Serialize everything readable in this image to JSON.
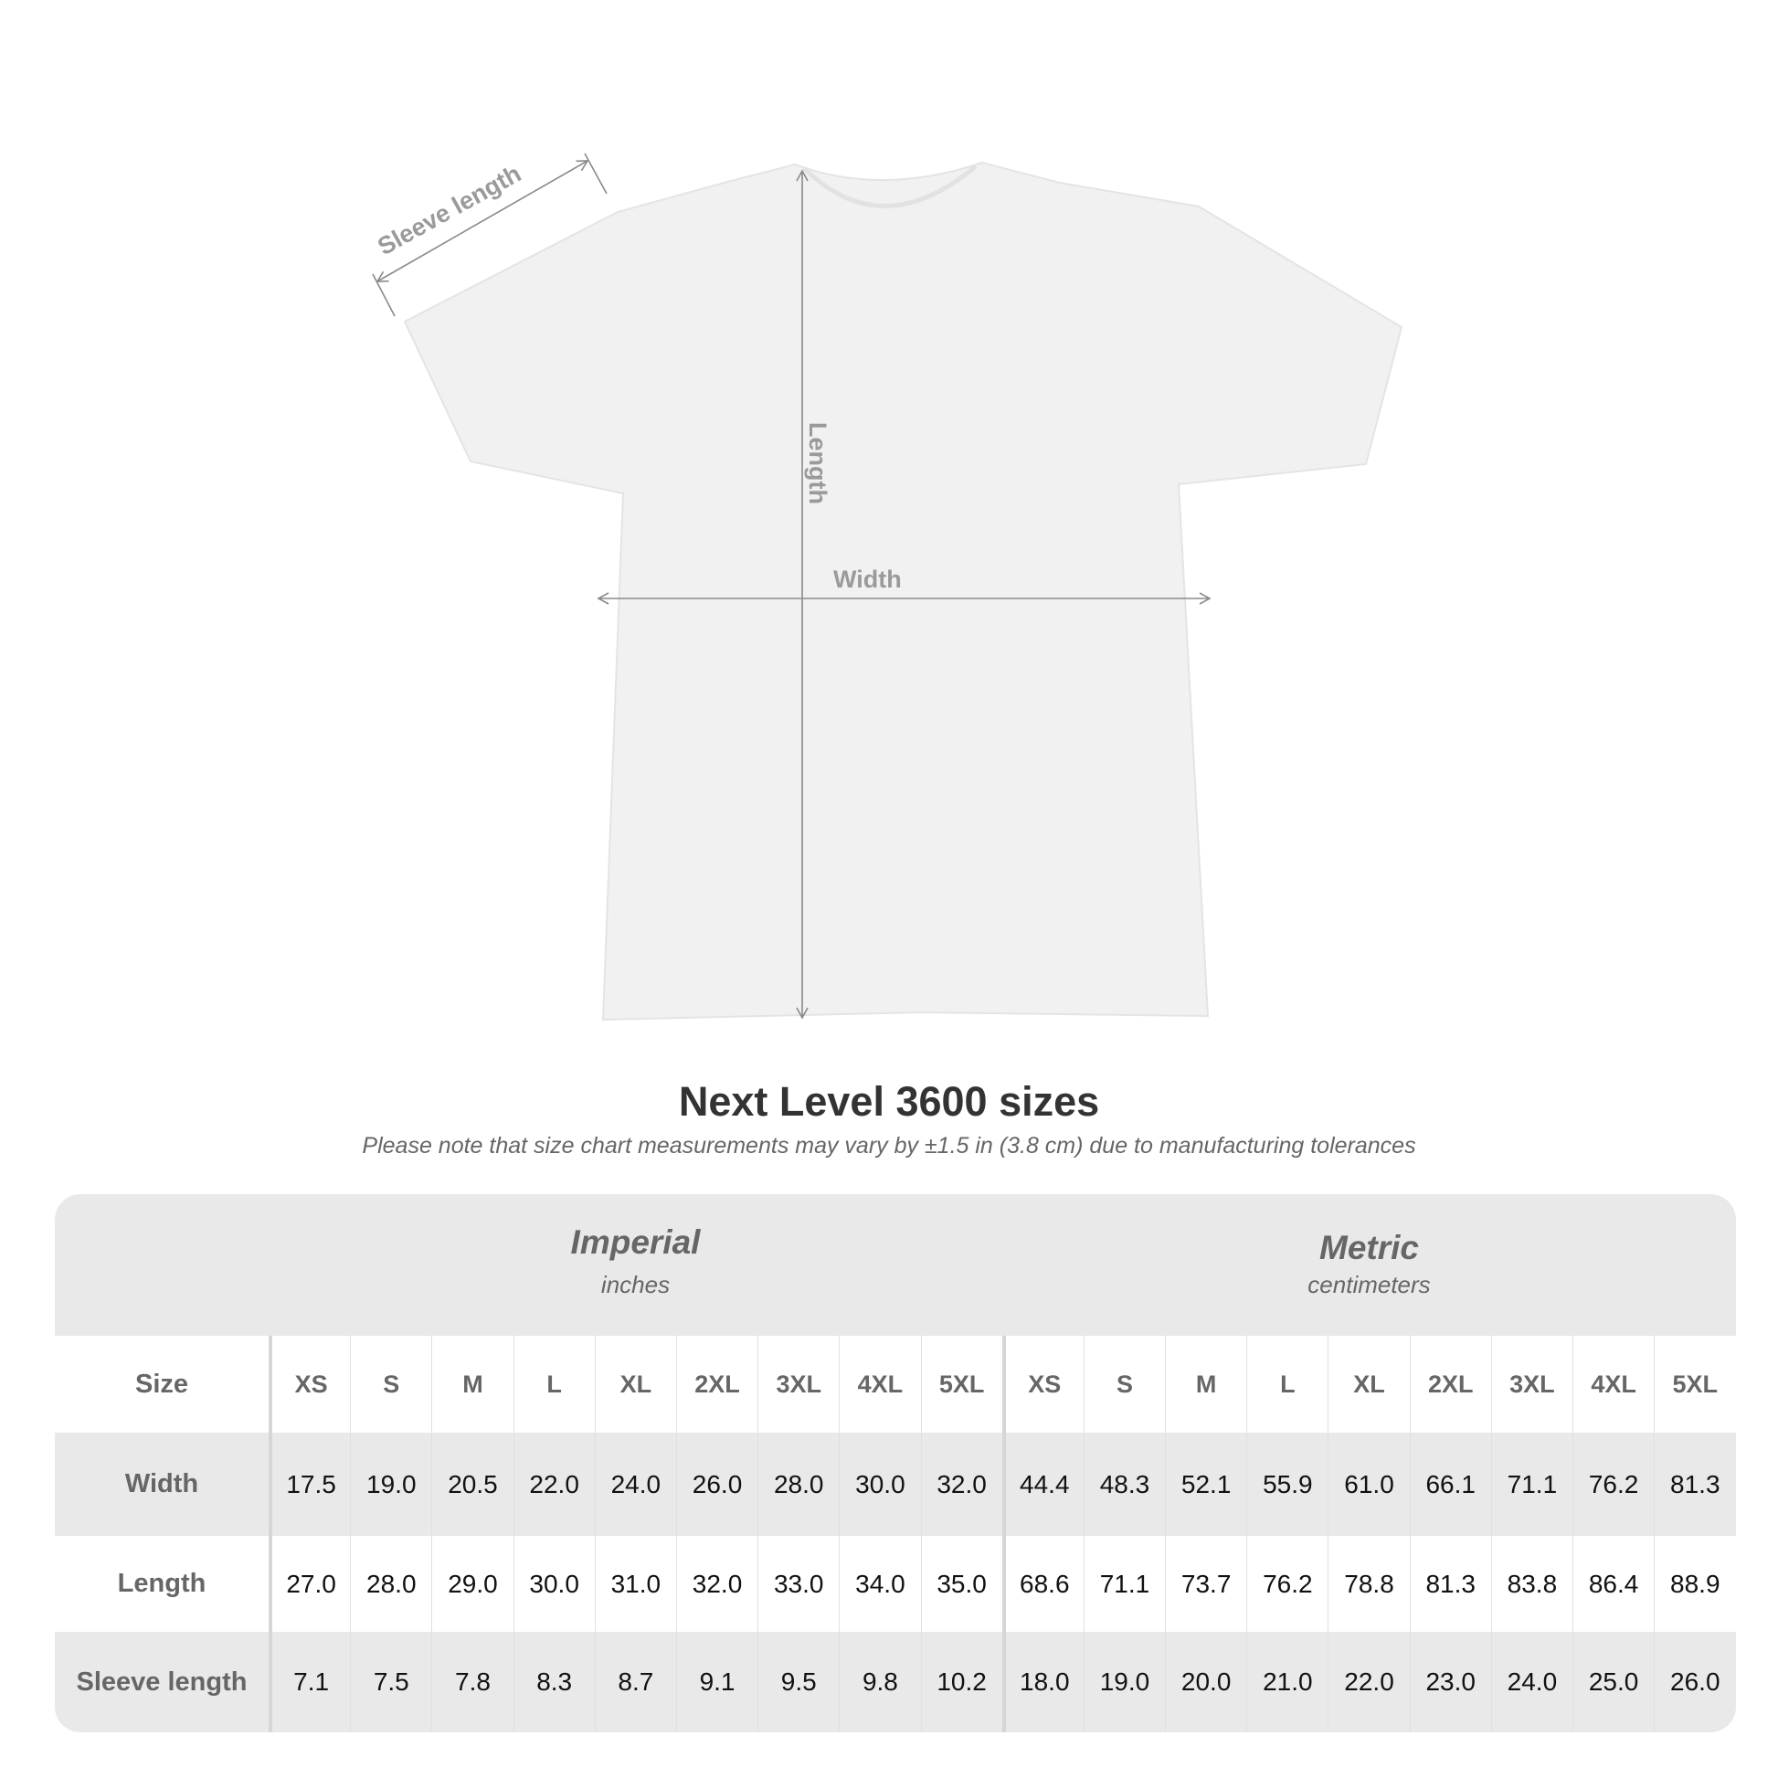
{
  "diagram": {
    "sleeve_label": "Sleeve length",
    "length_label": "Length",
    "width_label": "Width"
  },
  "title": "Next Level 3600 sizes",
  "note": "Please note that size chart measurements may vary by ±1.5 in (3.8 cm) due to manufacturing tolerances",
  "table": {
    "imperial": {
      "name": "Imperial",
      "unit": "inches"
    },
    "metric": {
      "name": "Metric",
      "unit": "centimeters"
    },
    "row_labels": [
      "Size",
      "Width",
      "Length",
      "Sleeve length"
    ],
    "sizes": [
      "XS",
      "S",
      "M",
      "L",
      "XL",
      "2XL",
      "3XL",
      "4XL",
      "5XL"
    ],
    "imperial_rows": [
      [
        "17.5",
        "19.0",
        "20.5",
        "22.0",
        "24.0",
        "26.0",
        "28.0",
        "30.0",
        "32.0"
      ],
      [
        "27.0",
        "28.0",
        "29.0",
        "30.0",
        "31.0",
        "32.0",
        "33.0",
        "34.0",
        "35.0"
      ],
      [
        "7.1",
        "7.5",
        "7.8",
        "8.3",
        "8.7",
        "9.1",
        "9.5",
        "9.8",
        "10.2"
      ]
    ],
    "metric_rows": [
      [
        "44.4",
        "48.3",
        "52.1",
        "55.9",
        "61.0",
        "66.1",
        "71.1",
        "76.2",
        "81.3"
      ],
      [
        "68.6",
        "71.1",
        "73.7",
        "76.2",
        "78.8",
        "81.3",
        "83.8",
        "86.4",
        "88.9"
      ],
      [
        "18.0",
        "19.0",
        "20.0",
        "21.0",
        "22.0",
        "23.0",
        "24.0",
        "25.0",
        "26.0"
      ]
    ]
  }
}
